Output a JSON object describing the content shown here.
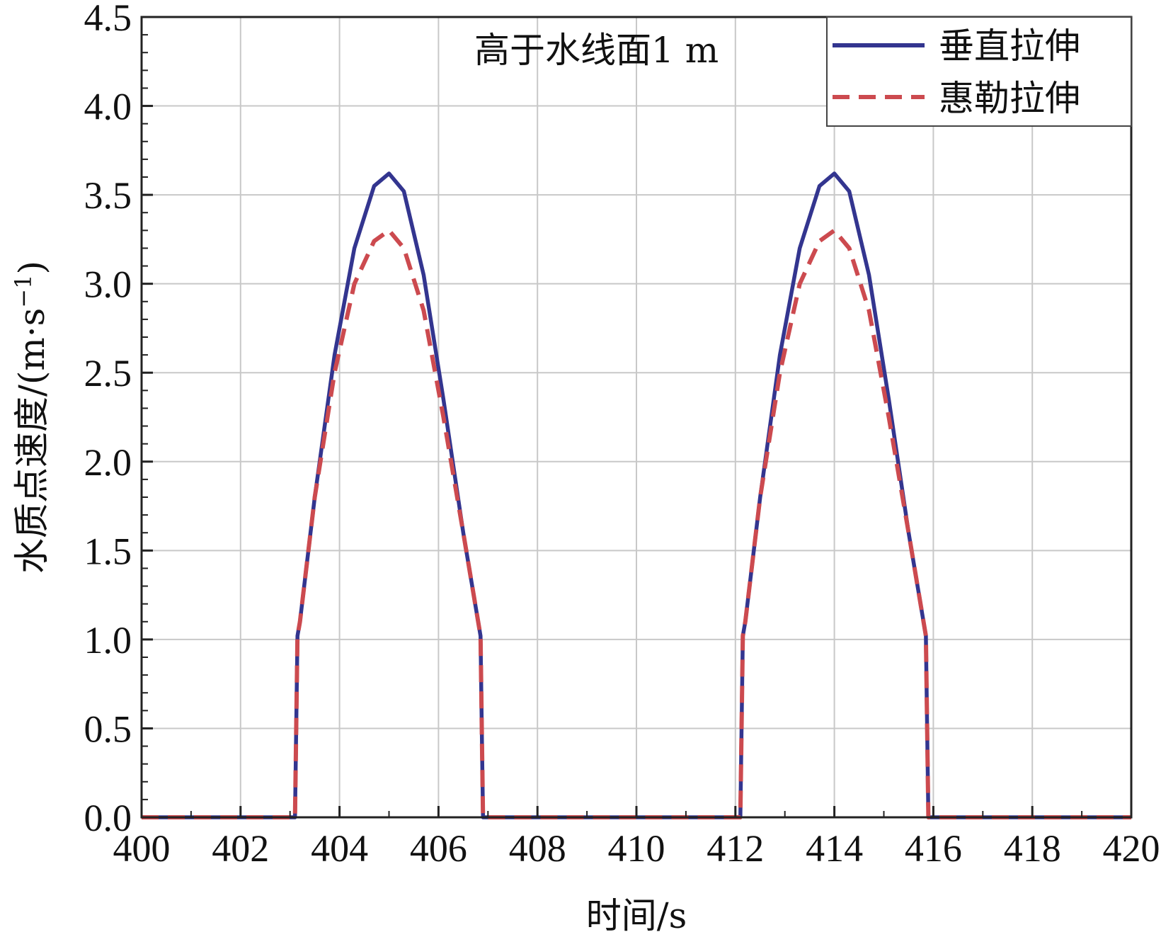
{
  "chart_data": {
    "type": "line",
    "title": "",
    "annotation": "高于水线面1 m",
    "xlabel": "时间/s",
    "ylabel": "水质点速度/(m·s",
    "ylabel_sup": "−1",
    "ylabel_tail": ")",
    "xlim": [
      400,
      420
    ],
    "ylim": [
      0,
      4.5
    ],
    "xticks": [
      "400",
      "402",
      "404",
      "406",
      "408",
      "410",
      "412",
      "414",
      "416",
      "418",
      "420"
    ],
    "yticks": [
      "0.0",
      "0.5",
      "1.0",
      "1.5",
      "2.0",
      "2.5",
      "3.0",
      "3.5",
      "4.0",
      "4.5"
    ],
    "grid": true,
    "legend_position": "top-right",
    "colors": {
      "series1": "#33358f",
      "series2": "#cc4a4f",
      "grid": "#c8c8c8",
      "axis": "#222222"
    },
    "series": [
      {
        "name": "垂直拉伸",
        "style": "solid",
        "x": [
          400,
          403.1,
          403.15,
          403.2,
          403.5,
          403.9,
          404.3,
          404.7,
          405.0,
          405.3,
          405.7,
          406.1,
          406.5,
          406.85,
          406.88,
          406.9,
          412.1,
          412.15,
          412.2,
          412.5,
          412.9,
          413.3,
          413.7,
          414.0,
          414.3,
          414.7,
          415.1,
          415.5,
          415.85,
          415.88,
          415.9,
          420
        ],
        "y": [
          0,
          0,
          1.02,
          1.1,
          1.8,
          2.6,
          3.2,
          3.55,
          3.62,
          3.52,
          3.05,
          2.35,
          1.6,
          1.02,
          0.4,
          0,
          0,
          1.02,
          1.1,
          1.8,
          2.6,
          3.2,
          3.55,
          3.62,
          3.52,
          3.05,
          2.35,
          1.6,
          1.02,
          0.4,
          0,
          0
        ]
      },
      {
        "name": "惠勒拉伸",
        "style": "dashed",
        "x": [
          400,
          403.1,
          403.15,
          403.2,
          403.5,
          403.9,
          404.3,
          404.7,
          405.0,
          405.3,
          405.7,
          406.1,
          406.5,
          406.85,
          406.88,
          406.9,
          412.1,
          412.15,
          412.2,
          412.5,
          412.9,
          413.3,
          413.7,
          414.0,
          414.3,
          414.7,
          415.1,
          415.5,
          415.85,
          415.88,
          415.9,
          420
        ],
        "y": [
          0,
          0,
          1.02,
          1.1,
          1.8,
          2.5,
          3.0,
          3.24,
          3.3,
          3.2,
          2.85,
          2.25,
          1.6,
          1.02,
          0.4,
          0,
          0,
          1.02,
          1.1,
          1.8,
          2.5,
          3.0,
          3.24,
          3.3,
          3.2,
          2.85,
          2.25,
          1.6,
          1.02,
          0.4,
          0,
          0
        ]
      }
    ]
  }
}
